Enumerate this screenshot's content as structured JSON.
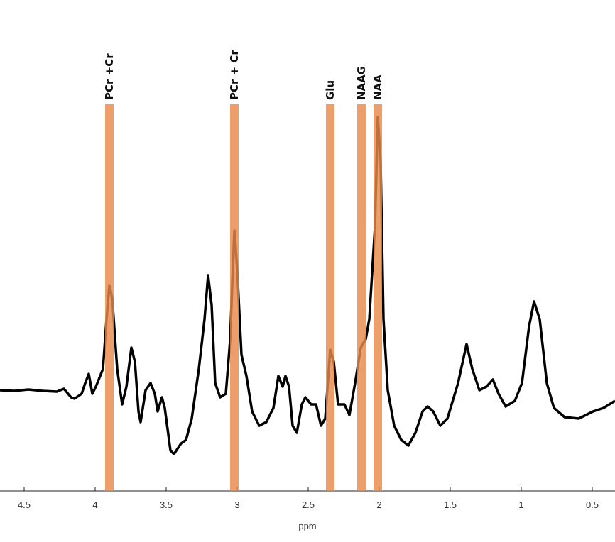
{
  "chart_data": {
    "type": "line",
    "x_label": "ppm",
    "xlim": [
      4.67,
      0.34
    ],
    "xticks": [
      4.5,
      4,
      3.5,
      3,
      2.5,
      2,
      1.5,
      1,
      0.5
    ],
    "ylim": [
      0,
      692
    ],
    "color": "#000000",
    "band_color": "#e8894a",
    "annotations": [
      {
        "label": "PCr +Cr",
        "x": 3.9
      },
      {
        "label": "PCr + Cr",
        "x": 3.02
      },
      {
        "label": "Glu",
        "x": 2.345
      },
      {
        "label": "NAAG",
        "x": 2.125
      },
      {
        "label": "NAA",
        "x": 2.01
      }
    ],
    "x": [
      4.67,
      4.57,
      4.47,
      4.37,
      4.27,
      4.22,
      4.17,
      4.145,
      4.095,
      4.07,
      4.045,
      4.02,
      3.995,
      3.945,
      3.92,
      3.9,
      3.88,
      3.845,
      3.81,
      3.78,
      3.745,
      3.72,
      3.695,
      3.68,
      3.645,
      3.61,
      3.58,
      3.56,
      3.53,
      3.51,
      3.47,
      3.445,
      3.395,
      3.36,
      3.32,
      3.27,
      3.23,
      3.205,
      3.18,
      3.155,
      3.12,
      3.08,
      3.05,
      3.02,
      3.0,
      2.97,
      2.935,
      2.895,
      2.845,
      2.795,
      2.745,
      2.71,
      2.68,
      2.66,
      2.635,
      2.61,
      2.58,
      2.545,
      2.52,
      2.48,
      2.445,
      2.41,
      2.38,
      2.345,
      2.32,
      2.29,
      2.245,
      2.21,
      2.17,
      2.13,
      2.095,
      2.07,
      2.03,
      2.01,
      1.99,
      1.97,
      1.94,
      1.895,
      1.845,
      1.795,
      1.745,
      1.695,
      1.66,
      1.62,
      1.57,
      1.52,
      1.445,
      1.385,
      1.345,
      1.295,
      1.245,
      1.2,
      1.16,
      1.11,
      1.045,
      0.995,
      0.945,
      0.91,
      0.87,
      0.82,
      0.77,
      0.695,
      0.595,
      0.495,
      0.42,
      0.34
    ],
    "values": [
      142,
      141,
      143,
      141,
      140,
      144,
      132,
      130,
      137,
      152,
      165,
      137,
      147,
      172,
      242,
      289,
      272,
      172,
      122,
      147,
      202,
      182,
      112,
      97,
      142,
      152,
      137,
      112,
      132,
      117,
      57,
      52,
      67,
      72,
      102,
      172,
      242,
      304,
      262,
      152,
      132,
      137,
      212,
      367,
      312,
      192,
      162,
      112,
      92,
      97,
      117,
      162,
      147,
      162,
      147,
      92,
      82,
      122,
      132,
      122,
      122,
      92,
      102,
      199,
      182,
      122,
      122,
      107,
      152,
      202,
      214,
      242,
      372,
      527,
      462,
      242,
      142,
      92,
      72,
      64,
      82,
      112,
      119,
      112,
      92,
      102,
      152,
      207,
      172,
      142,
      147,
      157,
      137,
      119,
      127,
      152,
      232,
      267,
      242,
      152,
      117,
      104,
      102,
      112,
      117,
      127
    ]
  }
}
